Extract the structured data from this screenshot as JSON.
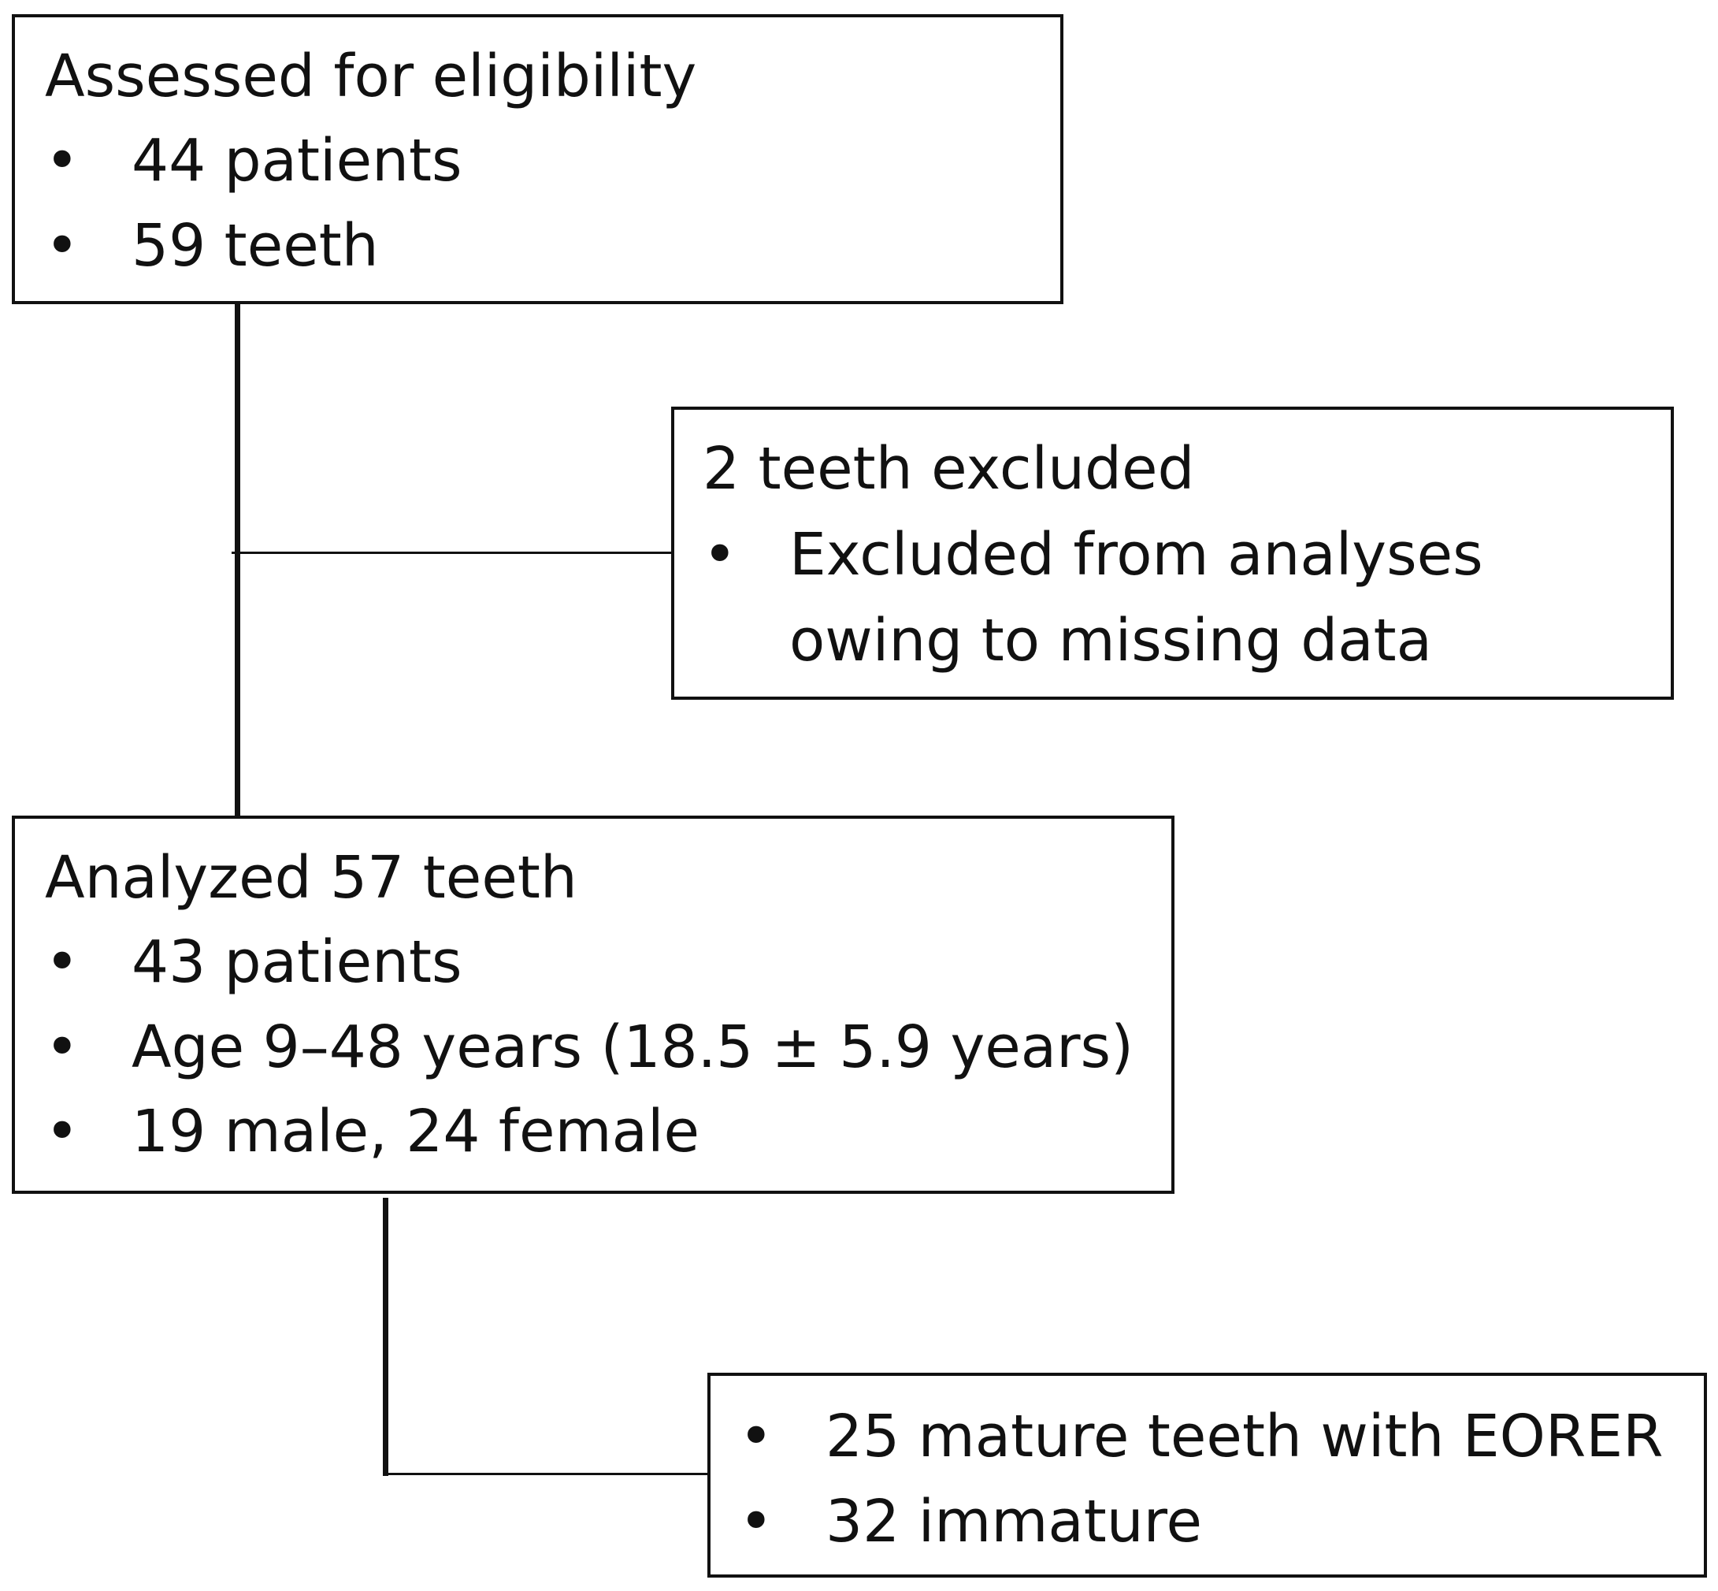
{
  "assessed": {
    "title": "Assessed for eligibility",
    "bullet_char": "•",
    "items": [
      "44 patients",
      "59 teeth"
    ]
  },
  "excluded": {
    "title": "2 teeth excluded",
    "bullet_char": "•",
    "items": [
      "Excluded from analyses",
      "owing to missing data"
    ]
  },
  "analyzed": {
    "title": "Analyzed 57 teeth",
    "bullet_char": "•",
    "items": [
      "43 patients",
      "Age 9–48 years (18.5 ± 5.9 years)",
      "19 male, 24 female"
    ]
  },
  "subgroups": {
    "bullet_char": "•",
    "items": [
      "25 mature teeth with EORER",
      "32 immature"
    ]
  }
}
